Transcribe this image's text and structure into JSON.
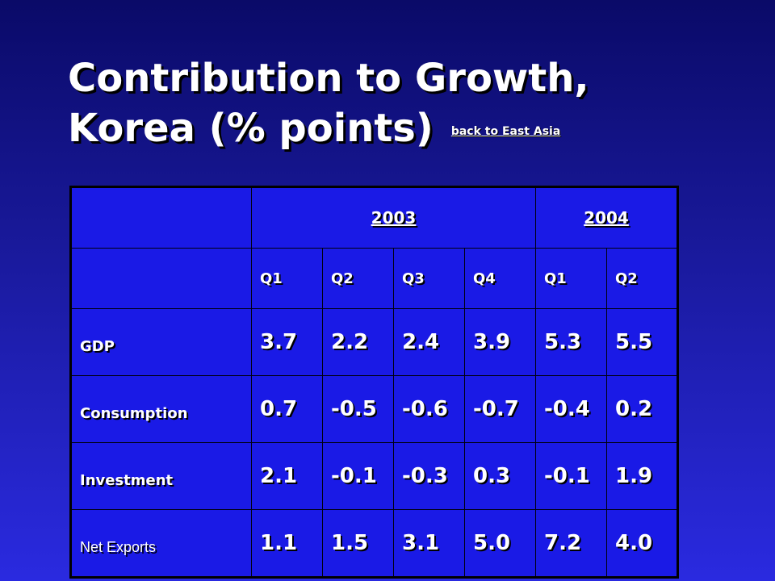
{
  "title": {
    "line1": "Contribution to Growth,",
    "line2": "Korea (% points)",
    "link": "back to East Asia"
  },
  "table": {
    "years": [
      "2003",
      "2004"
    ],
    "quarters": [
      "Q1",
      "Q2",
      "Q3",
      "Q4",
      "Q1",
      "Q2"
    ],
    "rows": [
      {
        "label": "GDP",
        "values": [
          "3.7",
          "2.2",
          "2.4",
          "3.9",
          "5.3",
          "5.5"
        ]
      },
      {
        "label": "Consumption",
        "values": [
          "0.7",
          "-0.5",
          "-0.6",
          "-0.7",
          "-0.4",
          "0.2"
        ]
      },
      {
        "label": "Investment",
        "values": [
          "2.1",
          "-0.1",
          "-0.3",
          "0.3",
          "-0.1",
          "1.9"
        ]
      },
      {
        "label": "Net Exports",
        "values": [
          "1.1",
          "1.5",
          "3.1",
          "5.0",
          "7.2",
          "4.0"
        ]
      }
    ]
  }
}
